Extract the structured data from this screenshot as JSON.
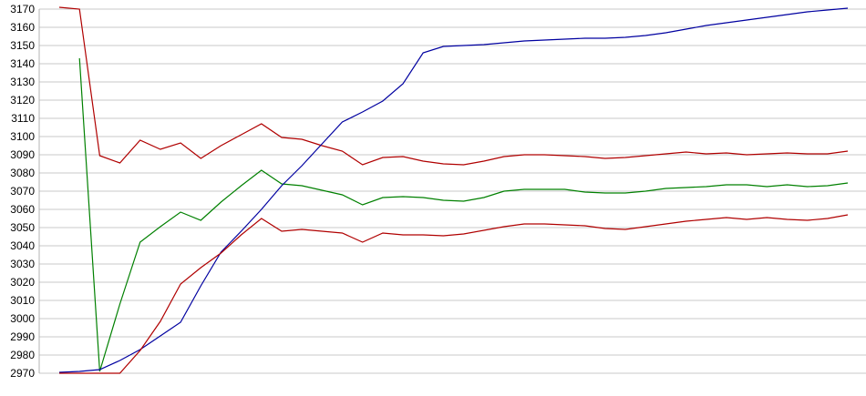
{
  "colors": {
    "background": "#ffffff",
    "gridline": "#c9c9c9",
    "axis_line": "#b3b3b3",
    "tick_text": "#000000",
    "red": "#b00000",
    "green": "#008000",
    "blue": "#0000a0"
  },
  "chart_data": {
    "type": "line",
    "title": "",
    "xlabel": "",
    "ylabel": "",
    "legend": false,
    "grid": true,
    "x_count": 40,
    "ylim": [
      2970,
      3170
    ],
    "ytick_step": 10,
    "ytick_labels": [
      "3170",
      "3160",
      "3150",
      "3140",
      "3130",
      "3120",
      "3110",
      "3100",
      "3090",
      "3080",
      "3070",
      "3060",
      "3050",
      "3040",
      "3030",
      "3020",
      "3010",
      "3000",
      "2990",
      "2980",
      "2970"
    ],
    "series": [
      {
        "name": "red-upper",
        "color": "#b00000",
        "values": [
          3171,
          3170,
          3089.5,
          3085.5,
          3098,
          3093,
          3096.5,
          3088,
          3095,
          3101,
          3107,
          3099.5,
          3098.5,
          3095,
          3092,
          3084.5,
          3088.5,
          3089,
          3086.5,
          3085,
          3084.5,
          3086.5,
          3089,
          3090,
          3090,
          3089.5,
          3089,
          3088,
          3088.5,
          3089.5,
          3090.5,
          3091.5,
          3090.5,
          3091,
          3090,
          3090.5,
          3091,
          3090.5,
          3090.5,
          3092
        ]
      },
      {
        "name": "green",
        "color": "#008000",
        "values": [
          null,
          3143,
          2971,
          3008,
          3042,
          3050.5,
          3058.5,
          3054,
          3064,
          3073,
          3081.5,
          3074,
          3073,
          3070.5,
          3068,
          3062.5,
          3066.5,
          3067,
          3066.5,
          3065,
          3064.5,
          3066.5,
          3070,
          3071,
          3071,
          3071,
          3069.5,
          3069,
          3069,
          3070,
          3071.5,
          3072,
          3072.5,
          3073.5,
          3073.5,
          3072.5,
          3073.5,
          3072.5,
          3073,
          3074.5
        ]
      },
      {
        "name": "blue",
        "color": "#0000a0",
        "values": [
          2970.5,
          2971,
          2972,
          2977,
          2983,
          2990.5,
          2998,
          3018,
          3036.5,
          3048,
          3060,
          3073,
          3084,
          3096,
          3108,
          3113.5,
          3119.5,
          3129,
          3146,
          3149.5,
          3150,
          3150.5,
          3151.5,
          3152.5,
          3153,
          3153.5,
          3154,
          3154,
          3154.5,
          3155.5,
          3157,
          3159,
          3161,
          3162.5,
          3164,
          3165.5,
          3167,
          3168.5,
          3169.5,
          3170.5
        ]
      },
      {
        "name": "red-lower",
        "color": "#b00000",
        "values": [
          2970,
          2970,
          2970,
          2970,
          2982.5,
          2998.5,
          3019,
          3028,
          3036,
          3046,
          3055,
          3048,
          3049,
          3048,
          3047,
          3042,
          3047,
          3046,
          3046,
          3045.5,
          3046.5,
          3048.5,
          3050.5,
          3052,
          3052,
          3051.5,
          3051,
          3049.5,
          3049,
          3050.5,
          3052,
          3053.5,
          3054.5,
          3055.5,
          3054.5,
          3055.5,
          3054.5,
          3054,
          3055,
          3057
        ]
      }
    ]
  }
}
